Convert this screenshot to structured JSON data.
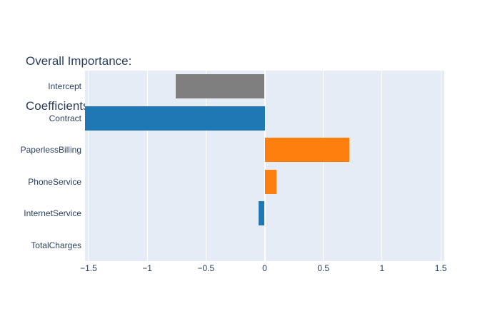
{
  "title": {
    "line1": "Overall Importance:",
    "line2": "Coefficients"
  },
  "colors": {
    "title_text": "#2a3f5f",
    "axis_text": "#2a3f5f",
    "plot_background": "#e5ecf6",
    "gridline": "#ffffff",
    "positive_bar": "#ff7f0e",
    "negative_bar": "#1f77b4",
    "intercept_bar": "#7f7f7f",
    "paper_background": "#ffffff"
  },
  "chart_data": {
    "type": "bar",
    "orientation": "horizontal",
    "title": "Overall Importance: Coefficients",
    "xlabel": "",
    "ylabel": "",
    "grid": true,
    "legend_position": "none",
    "xlim": [
      -1.53,
      1.53
    ],
    "categories": [
      "Intercept",
      "Contract",
      "PaperlessBilling",
      "PhoneService",
      "InternetService",
      "TotalCharges"
    ],
    "values": [
      -0.76,
      -1.53,
      0.72,
      0.1,
      -0.05,
      0.0
    ],
    "bar_colors": [
      "#7f7f7f",
      "#1f77b4",
      "#ff7f0e",
      "#ff7f0e",
      "#1f77b4",
      "#1f77b4"
    ],
    "xticks": [
      {
        "label": "−1.5",
        "value": -1.5
      },
      {
        "label": "−1",
        "value": -1.0
      },
      {
        "label": "−0.5",
        "value": -0.5
      },
      {
        "label": "0",
        "value": 0.0
      },
      {
        "label": "0.5",
        "value": 0.5
      },
      {
        "label": "1",
        "value": 1.0
      },
      {
        "label": "1.5",
        "value": 1.5
      }
    ]
  }
}
